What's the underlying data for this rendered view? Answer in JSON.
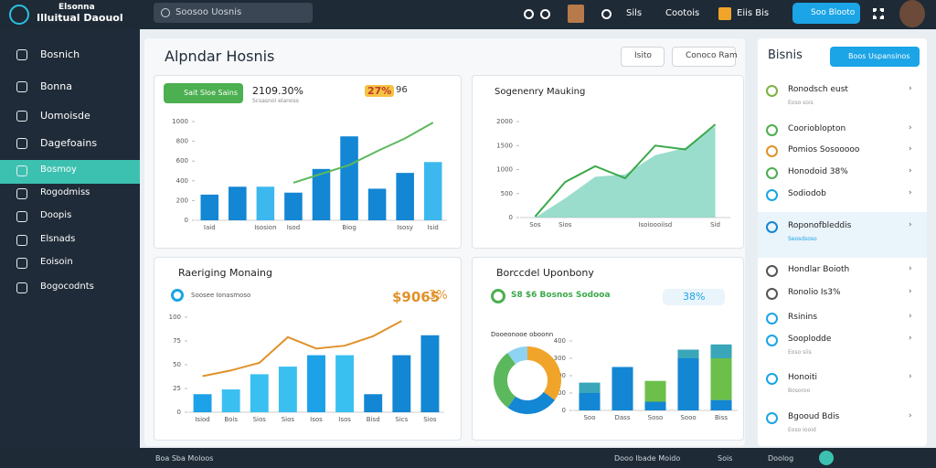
{
  "topbar": {
    "brand": [
      "Elsonna",
      "Illuitual Daouol"
    ],
    "search": "Soosoo Uosnis",
    "links": [
      "Sils",
      "Cootois",
      "Eiis Bis"
    ],
    "button": "Soo Blooto"
  },
  "sidebar": {
    "items": [
      "Bosnich",
      "Bonna",
      "Uomoisde",
      "Dagefoains",
      "Bosmoy",
      "Rogodmiss",
      "Doopis",
      "Elsnads",
      "Eoisoin",
      "Bogocodnts"
    ],
    "active": 4
  },
  "main": {
    "title": "Alpndar Hosnis",
    "buttons": [
      "Isito",
      "Conoco Ram"
    ]
  },
  "cards": [
    {
      "badge": "Sait Sloe Sains",
      "stat": "2109.30%",
      "stat_sub": "Scsasnoi elanoss",
      "pill": "27%",
      "pill_sub": "96",
      "chart": {
        "type": "combo",
        "categories": [
          "Iaid",
          null,
          "Isosion",
          "Isod",
          null,
          "Biog",
          null,
          "Isosy",
          "Isid"
        ],
        "ylim": [
          0,
          1000
        ],
        "yticks": [
          0,
          200,
          400,
          600,
          800,
          1000
        ],
        "series": [
          {
            "type": "bar",
            "colors": [
              "#1386d4",
              "#1386d4",
              "#3cb8ee",
              "#1386d4",
              "#1386d4",
              "#1386d4",
              "#1386d4",
              "#1386d4",
              "#3cb8ee"
            ],
            "values": [
              260,
              340,
              340,
              280,
              520,
              850,
              320,
              480,
              590
            ]
          },
          {
            "type": "line",
            "color": "#5cb85c",
            "values": [
              null,
              null,
              null,
              380,
              470,
              560,
              700,
              830,
              990
            ]
          }
        ]
      }
    },
    {
      "title": "Sogenenry Mauking",
      "chart": {
        "type": "combo",
        "categories": [
          "Sos",
          "Sios",
          null,
          null,
          "Isoioooiisd",
          null,
          "Sid"
        ],
        "ylim": [
          0,
          2000
        ],
        "yticks": [
          0,
          500,
          1000,
          1500,
          2000
        ],
        "series": [
          {
            "type": "area",
            "color": "#6fcfb8",
            "values": [
              0,
              400,
              850,
              900,
              1300,
              1450,
              1900
            ]
          },
          {
            "type": "line",
            "color": "#3aa84a",
            "values": [
              20,
              740,
              1070,
              820,
              1500,
              1420,
              1940
            ]
          }
        ]
      }
    },
    {
      "title": "Raeriging Monaing",
      "sub": "Soosee Ionasmoso",
      "stat": "$9065",
      "stat_sub": "3%",
      "chart": {
        "type": "combo",
        "categories": [
          "Isiod",
          "Bois",
          "Sios",
          "Sios",
          "Isos",
          "Isos",
          "Bisd",
          "Sics",
          "Sios"
        ],
        "ylim": [
          0,
          100
        ],
        "yticks": [
          0,
          25,
          50,
          75,
          100
        ],
        "series": [
          {
            "type": "bar",
            "colors": [
              "#1da1e8",
              "#3ac0f0",
              "#3ac0f0",
              "#3ac0f0",
              "#1da1e8",
              "#3ac0f0",
              "#1386d4",
              "#1386d4",
              "#1386d4"
            ],
            "values": [
              19,
              24,
              40,
              48,
              60,
              60,
              19,
              60,
              81
            ]
          },
          {
            "type": "line",
            "color": "#e0922b",
            "values": [
              38,
              44,
              52,
              79,
              67,
              70,
              80,
              96,
              null
            ]
          }
        ]
      }
    },
    {
      "title": "Borccdel Uponbony",
      "sub": "S8 $6 Bosnos Sodooa",
      "pill": "38%",
      "donut_label": "Dooeonooe oboonn",
      "donut": {
        "type": "pie",
        "values": [
          35,
          25,
          30,
          10
        ],
        "colors": [
          "#f0a52a",
          "#1386d4",
          "#5cb85c",
          "#8fd3f2"
        ]
      },
      "chart": {
        "type": "stacked",
        "categories": [
          "Soo",
          "Dass",
          "Soso",
          "Sooo",
          "Biss"
        ],
        "ylim": [
          0,
          400
        ],
        "yticks": [
          0,
          100,
          200,
          300,
          400
        ],
        "series": [
          {
            "type": "bar",
            "color": "#1386d4",
            "values": [
              100,
              250,
              50,
              300,
              60
            ]
          },
          {
            "type": "bar",
            "color": "#6cc04a",
            "values": [
              0,
              0,
              120,
              0,
              240
            ]
          },
          {
            "type": "bar",
            "color": "#3aa6b9",
            "values": [
              60,
              0,
              0,
              50,
              80
            ]
          }
        ]
      }
    }
  ],
  "right": {
    "title": "Bisnis",
    "button": "Boos Uspansinos",
    "active": 5,
    "items": [
      {
        "label": "Ronodsch eust",
        "sub": "Eoso sois"
      },
      {
        "label": "Coorioblopton"
      },
      {
        "label": "Pomios Sosooooo"
      },
      {
        "label": "Honodoid 38%"
      },
      {
        "label": "Sodiodob"
      },
      {
        "label": "Roponofbleddis",
        "sub": "Seosdsoso"
      },
      {
        "label": "Hondlar Boioth"
      },
      {
        "label": "Ronolio Is3%"
      },
      {
        "label": "Rsinins"
      },
      {
        "label": "Sooplodde",
        "sub": "Eoso siis"
      },
      {
        "label": "Honoiti",
        "sub": "Bosoroo"
      },
      {
        "label": "Bgooud Bdis",
        "sub": "Eoso Iooid"
      }
    ]
  },
  "footer": {
    "left": "Boa Sba Moloos",
    "right": [
      "Dooo Ibade Moido",
      "Sois",
      "Doolog"
    ]
  }
}
